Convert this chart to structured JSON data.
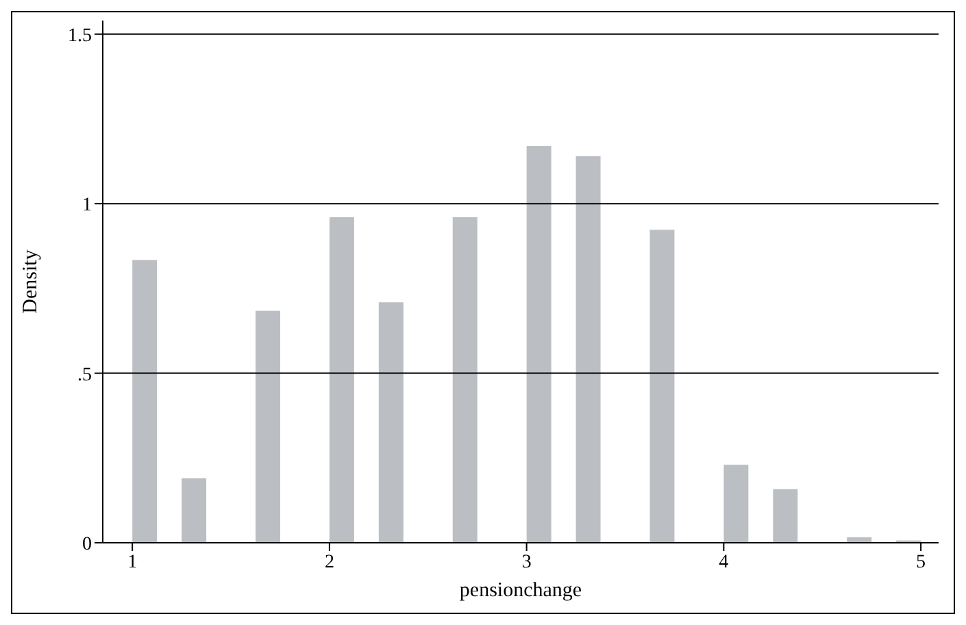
{
  "chart_data": {
    "type": "histogram",
    "xlabel": "pensionchange",
    "ylabel": "Density",
    "color": "#bbbec3",
    "bins": [
      1,
      1.125,
      1.25,
      1.375,
      1.5,
      1.625,
      1.75,
      1.875,
      2,
      2.125,
      2.25,
      2.375,
      2.5,
      2.625,
      2.75,
      2.875,
      3,
      3.125,
      3.25,
      3.375,
      3.5,
      3.625,
      3.75,
      3.875,
      4,
      4.125,
      4.25,
      4.375,
      4.5,
      4.625,
      4.75,
      4.875,
      5
    ],
    "values": [
      0.834,
      0,
      0.19,
      0,
      0,
      0.684,
      0,
      0,
      0.96,
      0,
      0.709,
      0,
      0,
      0.96,
      0,
      0,
      1.17,
      0,
      1.14,
      0,
      0,
      0.923,
      0,
      0,
      0.23,
      0,
      0.158,
      0,
      0,
      0.016,
      0,
      0.007
    ],
    "xlim": [
      0.85,
      5.09
    ],
    "ylim": [
      0,
      1.54
    ],
    "xticks": [
      1,
      2,
      3,
      4,
      5
    ],
    "yticks": [
      0,
      {
        "value": 0.5,
        "label": ".5"
      },
      1,
      1.5
    ],
    "grid": "y"
  }
}
